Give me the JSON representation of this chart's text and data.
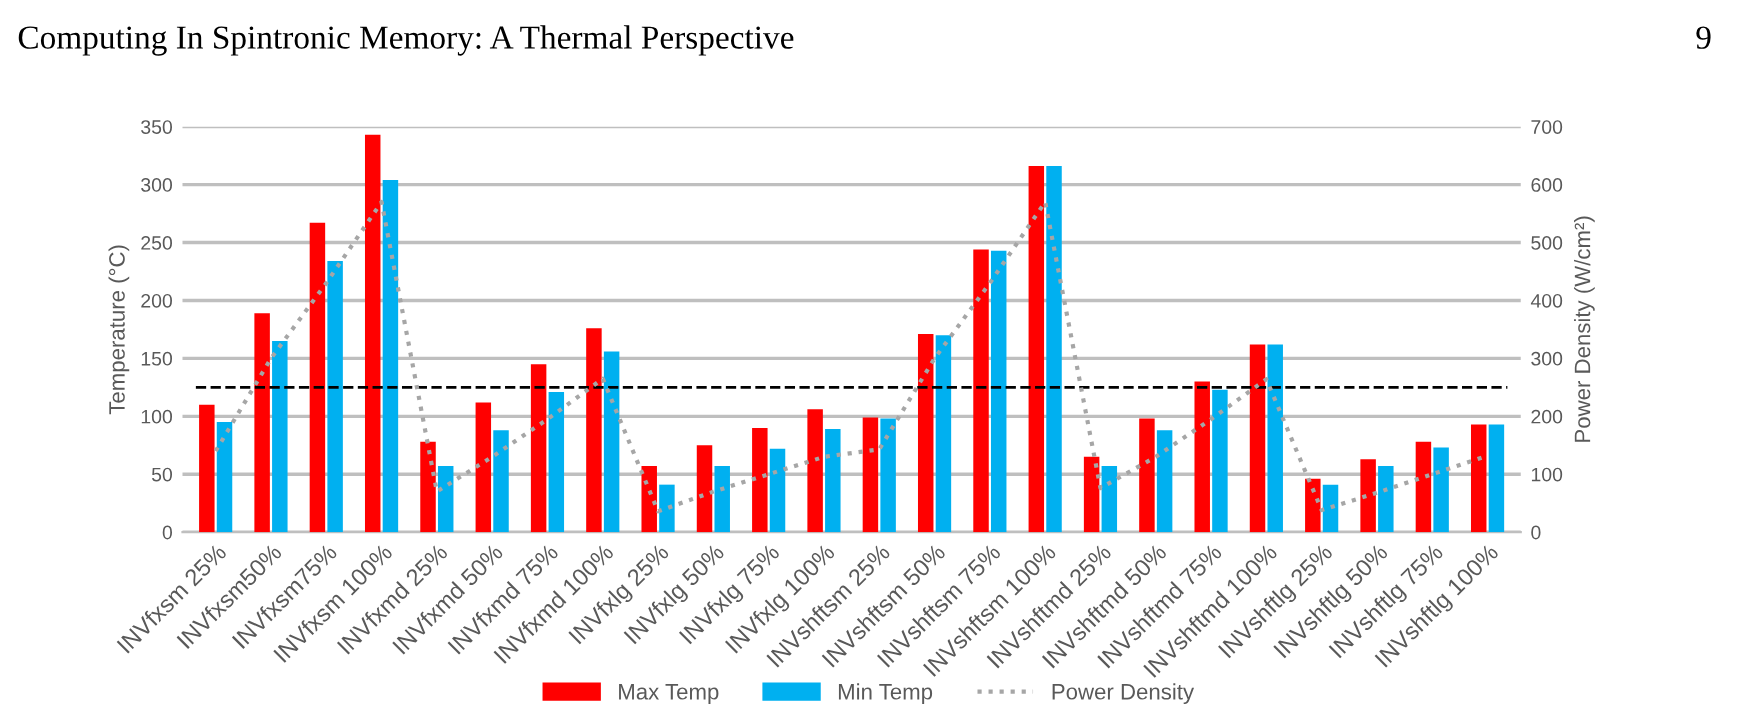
{
  "chart_data": {
    "type": "bar",
    "title": "Computing In Spintronic Memory: A Thermal Perspective",
    "annotations": [
      "9"
    ],
    "categories": [
      "INVfxsm 25%",
      "INVfxsm50%",
      "INVfxsm75%",
      "INVfxsm 100%",
      "INVfxmd 25%",
      "INVfxmd 50%",
      "INVfxmd 75%",
      "INVfxmd 100%",
      "INVfxlg 25%",
      "INVfxlg 50%",
      "INVfxlg 75%",
      "INVfxlg 100%",
      "INVshftsm 25%",
      "INVshftsm 50%",
      "INVshftsm 75%",
      "INVshftsm 100%",
      "INVshftmd 25%",
      "INVshftmd 50%",
      "INVshftmd 75%",
      "INVshftmd 100%",
      "INVshftlg 25%",
      "INVshftlg 50%",
      "INVshftlg 75%",
      "INVshftlg 100%"
    ],
    "series": [
      {
        "name": "Max Temp",
        "color": "#ff0000",
        "values": [
          110,
          189,
          267,
          343,
          78,
          112,
          145,
          176,
          57,
          75,
          90,
          106,
          99,
          171,
          244,
          316,
          65,
          98,
          130,
          162,
          46,
          63,
          78,
          93
        ]
      },
      {
        "name": "Min Temp",
        "color": "#00b0f0",
        "values": [
          95,
          165,
          234,
          304,
          57,
          88,
          121,
          156,
          41,
          57,
          72,
          89,
          98,
          170,
          243,
          316,
          57,
          88,
          123,
          162,
          41,
          57,
          73,
          93
        ]
      },
      {
        "name": "Power Density",
        "type": "line",
        "axis": "y2",
        "color": "#a6a6a6",
        "line_style": "dotted",
        "marker": "none",
        "values": [
          140,
          300,
          430,
          570,
          70,
          130,
          195,
          265,
          36,
          70,
          100,
          130,
          143,
          300,
          430,
          570,
          76,
          130,
          195,
          264,
          38,
          68,
          100,
          132
        ]
      }
    ],
    "ylabel": "Temperature (°C)",
    "y2label": "Power Density (W/cm²)",
    "ylim": [
      0,
      350
    ],
    "yticks": [
      0,
      50,
      100,
      150,
      200,
      250,
      300,
      350
    ],
    "y2lim": [
      0,
      700
    ],
    "y2ticks": [
      0,
      100,
      200,
      300,
      400,
      500,
      600,
      700
    ],
    "ref_lines": [
      {
        "axis": "y",
        "value": 125,
        "label": null,
        "color": "#000000",
        "line_style": "dashed"
      }
    ],
    "grid": "y",
    "legend": "bottom"
  }
}
